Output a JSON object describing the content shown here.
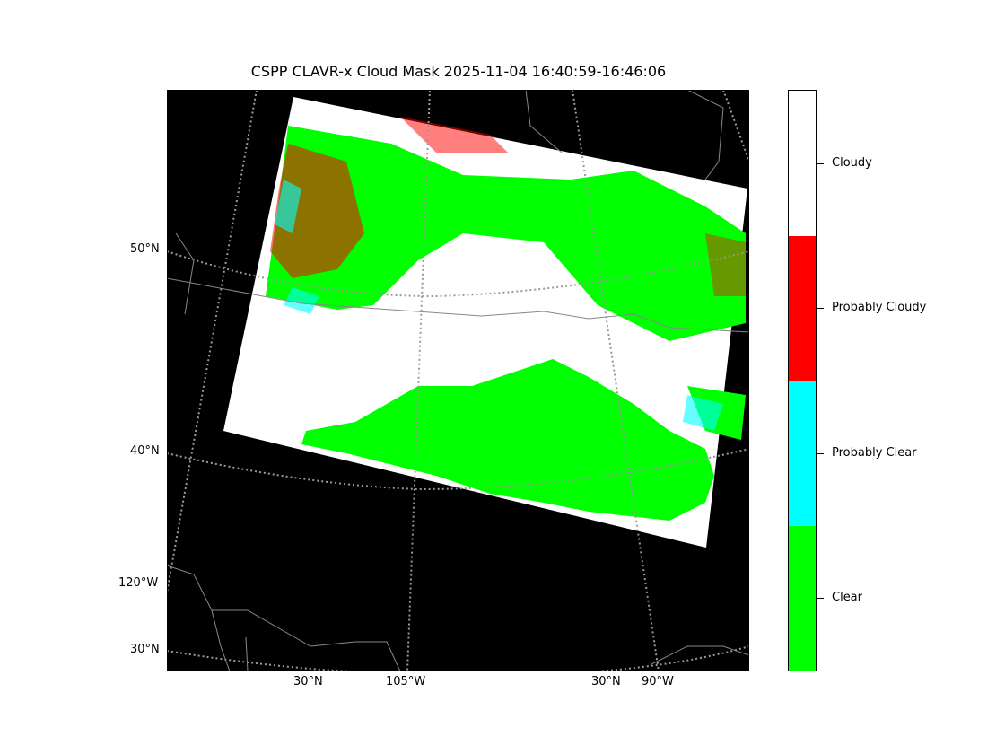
{
  "title": "CSPP CLAVR-x Cloud Mask 2025-11-04 16:40:59-16:46:06",
  "map": {
    "background": "#000000",
    "left_labels": [
      "50°N",
      "40°N",
      "120°W",
      "30°N"
    ],
    "bottom_labels": [
      "30°N",
      "105°W",
      "30°N",
      "90°W"
    ]
  },
  "colorbar": {
    "categories": [
      {
        "label": "Cloudy",
        "color": "#ffffff"
      },
      {
        "label": "Probably Cloudy",
        "color": "#ff0000"
      },
      {
        "label": "Probably Clear",
        "color": "#00ffff"
      },
      {
        "label": "Clear",
        "color": "#00ff00"
      }
    ]
  }
}
